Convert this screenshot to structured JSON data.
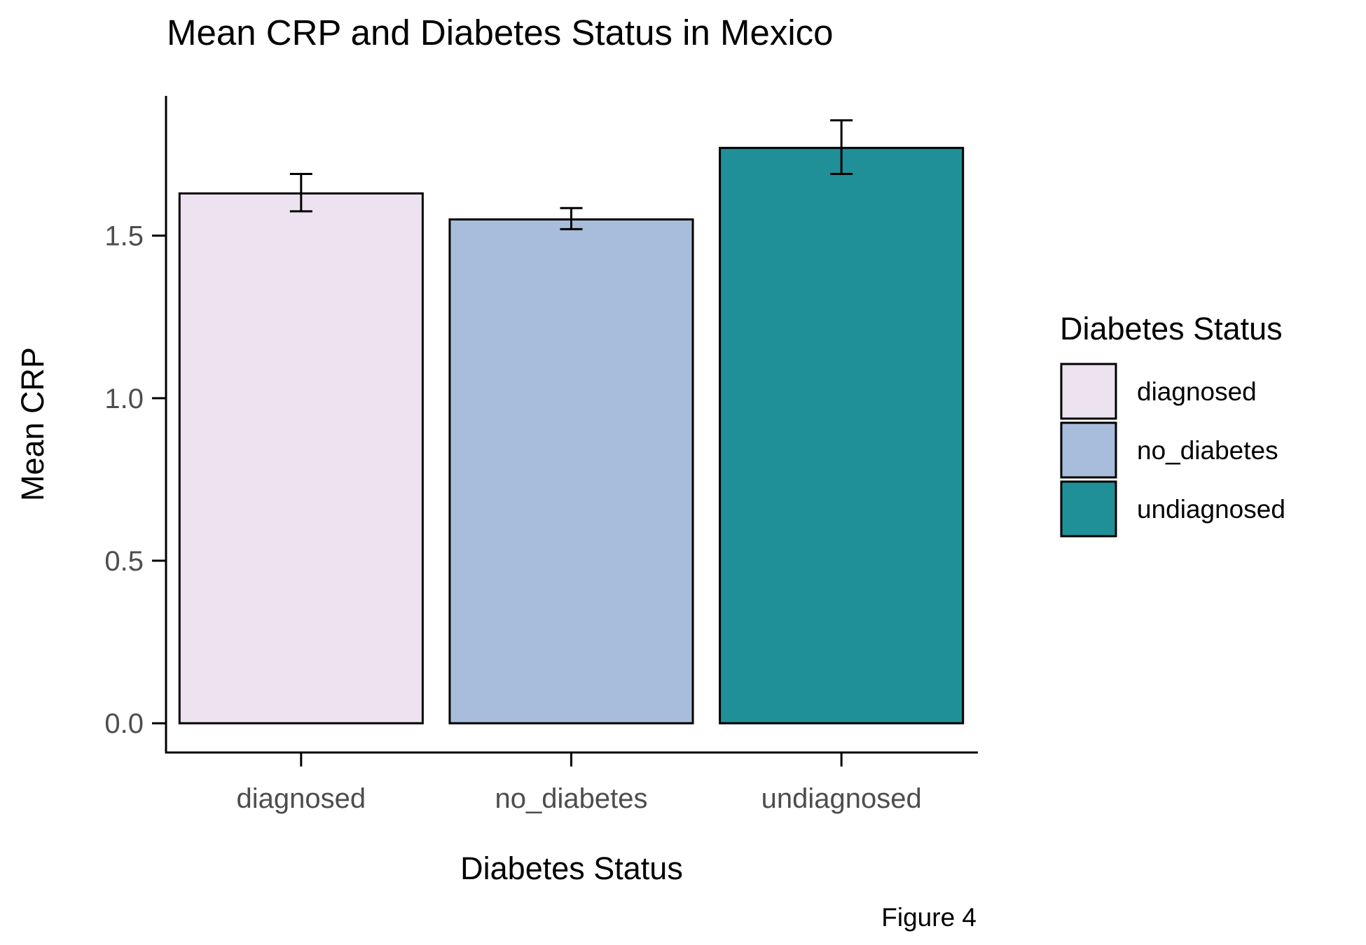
{
  "chart_data": {
    "type": "bar",
    "title": "Mean CRP and Diabetes Status in Mexico",
    "xlabel": "Diabetes Status",
    "ylabel": "Mean CRP",
    "categories": [
      "diagnosed",
      "no_diabetes",
      "undiagnosed"
    ],
    "values": [
      1.63,
      1.55,
      1.77
    ],
    "error_low": [
      1.575,
      1.52,
      1.69
    ],
    "error_high": [
      1.69,
      1.585,
      1.855
    ],
    "colors": [
      "#EDE2EF",
      "#A8BDDC",
      "#1F9098"
    ],
    "ylim": [
      -0.09,
      1.93
    ],
    "yticks": [
      0.0,
      0.5,
      1.0,
      1.5
    ],
    "ytick_labels": [
      "0.0",
      "0.5",
      "1.0",
      "1.5"
    ],
    "grid": false,
    "legend": {
      "title": "Diabetes Status",
      "position": "right",
      "entries": [
        "diagnosed",
        "no_diabetes",
        "undiagnosed"
      ]
    },
    "caption": "Figure 4"
  }
}
